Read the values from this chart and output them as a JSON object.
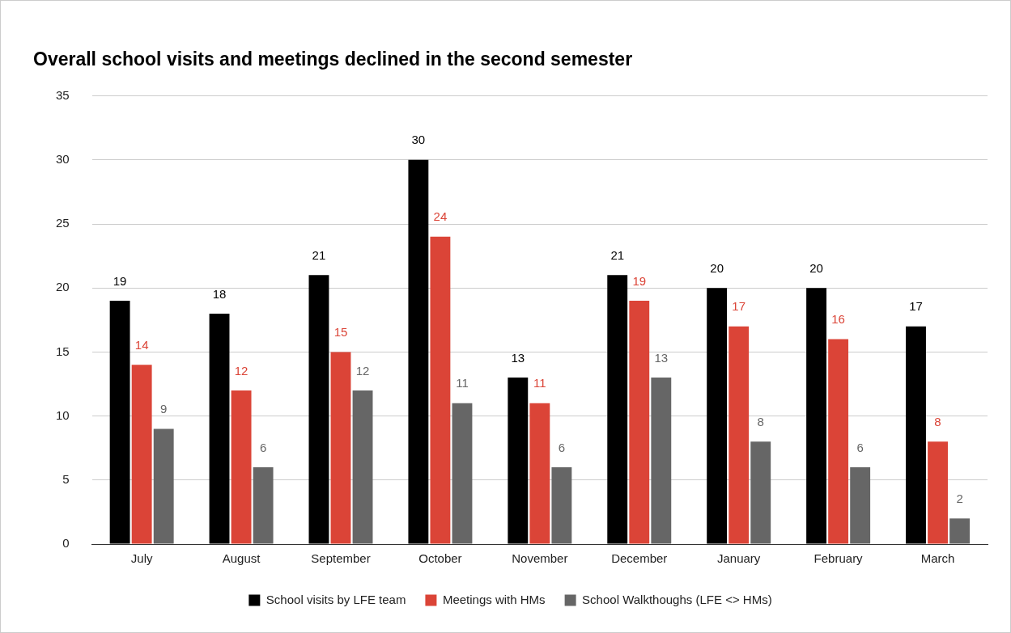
{
  "chart_data": {
    "type": "bar",
    "title": "Overall school visits and meetings declined in the second semester",
    "categories": [
      "July",
      "August",
      "September",
      "October",
      "November",
      "December",
      "January",
      "February",
      "March"
    ],
    "series": [
      {
        "name": "School visits by LFE team",
        "color": "#000000",
        "values": [
          19,
          18,
          21,
          30,
          13,
          21,
          20,
          20,
          17
        ]
      },
      {
        "name": "Meetings with HMs",
        "color": "#db4437",
        "values": [
          14,
          12,
          15,
          24,
          11,
          19,
          17,
          16,
          8
        ]
      },
      {
        "name": "School Walkthoughs (LFE <> HMs)",
        "color": "#666666",
        "values": [
          9,
          6,
          12,
          11,
          6,
          13,
          8,
          6,
          2
        ]
      }
    ],
    "ylim": [
      0,
      35
    ],
    "yticks": [
      0,
      5,
      10,
      15,
      20,
      25,
      30,
      35
    ],
    "grid": "y",
    "legend": "bottom",
    "data_labels": true
  }
}
